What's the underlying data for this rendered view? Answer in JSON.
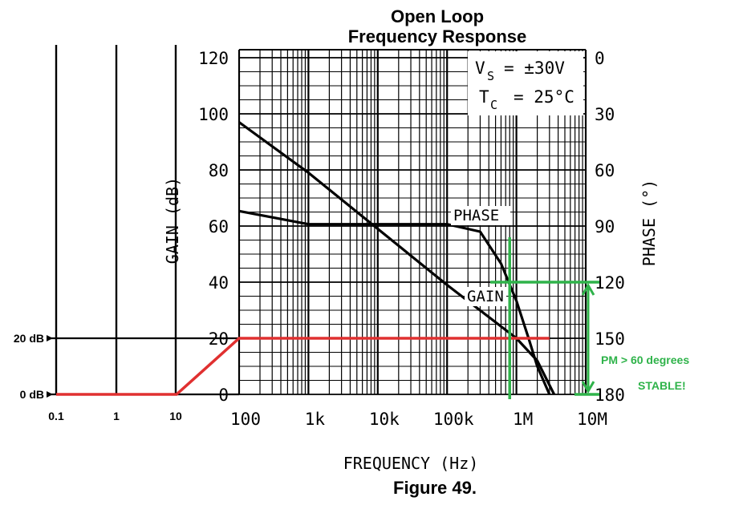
{
  "chart_data": [
    {
      "type": "line",
      "title_line1": "Open Loop",
      "title_line2": "Frequency Response",
      "xlabel": "FREQUENCY (Hz)",
      "ylabel_left": "GAIN (dB)",
      "ylabel_right": "PHASE (°)",
      "x_scale": "log",
      "xlim": [
        100,
        10000000
      ],
      "ylim_left": [
        0,
        120
      ],
      "ylim_right": [
        0,
        180
      ],
      "right_axis_inverted": true,
      "x_ticks": [
        {
          "value": 100,
          "label": "100"
        },
        {
          "value": 1000,
          "label": "1k"
        },
        {
          "value": 10000,
          "label": "10k"
        },
        {
          "value": 100000,
          "label": "100k"
        },
        {
          "value": 1000000,
          "label": "1M"
        },
        {
          "value": 10000000,
          "label": "10M"
        }
      ],
      "y_ticks_left": [
        "0",
        "20",
        "40",
        "60",
        "80",
        "100",
        "120"
      ],
      "y_ticks_right": [
        "0",
        "30",
        "60",
        "90",
        "120",
        "150",
        "180"
      ],
      "grid": true,
      "conditions": {
        "vs": "V",
        "vs_sub": "S",
        "vs_value": "= ±30V",
        "tc": "T",
        "tc_sub": "C",
        "tc_value": "= 25°C"
      },
      "series": [
        {
          "name": "GAIN",
          "axis": "left",
          "x": [
            100,
            1000,
            10000,
            100000,
            1000000,
            2000000,
            3500000
          ],
          "y": [
            97,
            79,
            59,
            39,
            20,
            12,
            0
          ]
        },
        {
          "name": "PHASE",
          "axis": "right",
          "x": [
            100,
            1000,
            10000,
            100000,
            300000,
            600000,
            1000000,
            1500000,
            2000000,
            3000000
          ],
          "y": [
            82,
            89,
            89,
            89,
            93,
            110,
            130,
            150,
            165,
            180
          ]
        }
      ],
      "figure_caption": "Figure 49.",
      "colors": {
        "curves": "#000000",
        "annotation_red": "#e03030",
        "annotation_green": "#2fb34a"
      }
    },
    {
      "type": "line",
      "note": "Hand-drawn annotation overlay extending the frequency axis",
      "x_extension_ticks": [
        {
          "value": 0.1,
          "label": "0.1"
        },
        {
          "value": 1,
          "label": "1"
        },
        {
          "value": 10,
          "label": "10"
        }
      ],
      "y_markers": [
        {
          "value": 0,
          "label": "0 dB"
        },
        {
          "value": 20,
          "label": "20 dB"
        }
      ],
      "series": [
        {
          "axis": "left",
          "x": [
            0.1,
            10,
            100,
            3000000
          ],
          "y": [
            0,
            0,
            20,
            20
          ]
        }
      ],
      "crossover_frequency": 800000,
      "phase_at_crossover": 120,
      "annotation_text_1": "PM > 60 degrees",
      "annotation_text_2": "STABLE!"
    }
  ]
}
